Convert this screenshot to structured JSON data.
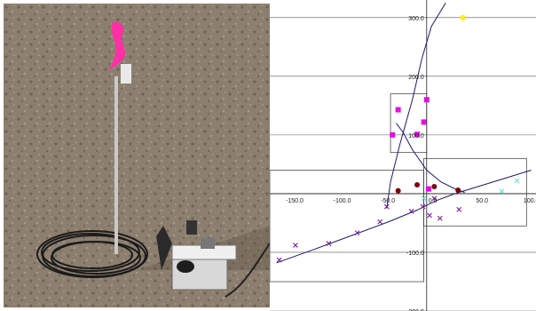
{
  "photo": {
    "subject": "Field sensor mast with pink flagging tape, coiled cable and data-logger box on sandy desert ground"
  },
  "chart_data": {
    "type": "scatter",
    "xlim": [
      -165,
      115
    ],
    "ylim": [
      -200,
      330
    ],
    "grid": "horizontal",
    "x_tick_labels": [
      "-150.0",
      "-100.0",
      "-50.0",
      "0.0",
      "50.0",
      "100.0"
    ],
    "y_tick_labels": [
      "300.0",
      "200.0",
      "100.0",
      "-100.0",
      "-200.0"
    ],
    "x_ticks": [
      -150,
      -100,
      -50,
      0,
      50,
      100
    ],
    "y_ticks": [
      300,
      200,
      100,
      -100,
      -200
    ],
    "gridlines_y": [
      300,
      200,
      100,
      0,
      -100,
      -200
    ],
    "series": [
      {
        "marker": "circle",
        "color": "#ffee00",
        "points": [
          [
            38,
            300
          ]
        ]
      },
      {
        "marker": "square",
        "color": "#e010e0",
        "points": [
          [
            -30,
            143
          ],
          [
            -36,
            100
          ],
          [
            -3,
            122
          ],
          [
            -10,
            101
          ],
          [
            0,
            160
          ],
          [
            2,
            8
          ]
        ]
      },
      {
        "marker": "circle",
        "color": "#7a0010",
        "points": [
          [
            -30,
            5
          ],
          [
            -10,
            15
          ],
          [
            8,
            12
          ],
          [
            33,
            6
          ]
        ]
      },
      {
        "marker": "cross",
        "color": "#7a1a9a",
        "points": [
          [
            -155,
            -113
          ],
          [
            -138,
            -88
          ],
          [
            -103,
            -85
          ],
          [
            -73,
            -67
          ],
          [
            -49,
            -48
          ],
          [
            -42,
            -22
          ],
          [
            -16,
            -30
          ],
          [
            -4,
            -22
          ],
          [
            3,
            -37
          ],
          [
            8,
            -8
          ],
          [
            14,
            -42
          ],
          [
            34,
            -27
          ]
        ]
      },
      {
        "marker": "cross",
        "color": "#66dddd",
        "points": [
          [
            -3,
            -8
          ],
          [
            79,
            4
          ],
          [
            95,
            22
          ]
        ]
      }
    ],
    "curves": [
      {
        "color": "#1a1a6e",
        "points": [
          [
            -158,
            -118
          ],
          [
            -120,
            -96
          ],
          [
            -80,
            -72
          ],
          [
            -40,
            -48
          ],
          [
            -10,
            -28
          ],
          [
            0,
            -20
          ],
          [
            10,
            -12
          ],
          [
            30,
            0
          ],
          [
            60,
            15
          ],
          [
            110,
            40
          ]
        ]
      },
      {
        "color": "#1a1a6e",
        "points": [
          [
            -32,
            120
          ],
          [
            -25,
            105
          ],
          [
            -15,
            75
          ],
          [
            0,
            40
          ],
          [
            15,
            20
          ],
          [
            30,
            8
          ],
          [
            40,
            2
          ]
        ]
      },
      {
        "color": "#1a1a6e",
        "points": [
          [
            -42,
            -25
          ],
          [
            -38,
            20
          ],
          [
            -28,
            85
          ],
          [
            -15,
            160
          ],
          [
            -5,
            230
          ],
          [
            5,
            285
          ],
          [
            20,
            325
          ]
        ]
      }
    ],
    "boxes": [
      {
        "x0": -165,
        "y0": -150,
        "x1": -3,
        "y1": 40
      },
      {
        "x0": -38,
        "y0": 70,
        "x1": 0,
        "y1": 170
      },
      {
        "x0": -3,
        "y0": -55,
        "x1": 105,
        "y1": 60
      }
    ]
  }
}
